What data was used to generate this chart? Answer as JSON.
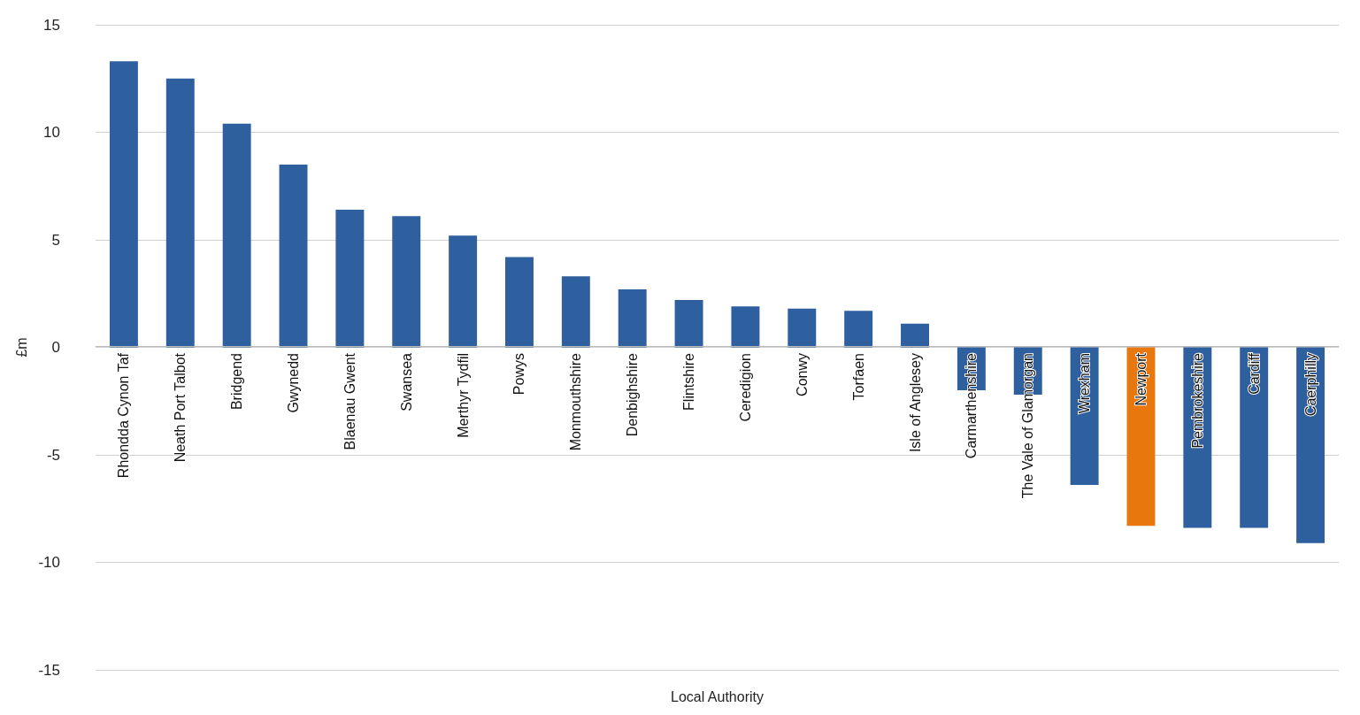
{
  "chart_data": {
    "type": "bar",
    "xlabel": "Local Authority",
    "ylabel": "£m",
    "categories": [
      "Rhondda Cynon Taf",
      "Neath Port Talbot",
      "Bridgend",
      "Gwynedd",
      "Blaenau Gwent",
      "Swansea",
      "Merthyr Tydfil",
      "Powys",
      "Monmouthshire",
      "Denbighshire",
      "Flintshire",
      "Ceredigion",
      "Conwy",
      "Torfaen",
      "Isle of Anglesey",
      "Carmarthenshire",
      "The Vale of Glamorgan",
      "Wrexham",
      "Newport",
      "Pembrokeshire",
      "Cardiff",
      "Caerphilly"
    ],
    "values": [
      13.3,
      12.5,
      10.4,
      8.5,
      6.4,
      6.1,
      5.2,
      4.2,
      3.3,
      2.7,
      2.2,
      1.9,
      1.8,
      1.7,
      1.1,
      -2.0,
      -2.2,
      -6.4,
      -8.3,
      -8.4,
      -8.4,
      -9.1
    ],
    "colors": [
      "#2e5f9e",
      "#2e5f9e",
      "#2e5f9e",
      "#2e5f9e",
      "#2e5f9e",
      "#2e5f9e",
      "#2e5f9e",
      "#2e5f9e",
      "#2e5f9e",
      "#2e5f9e",
      "#2e5f9e",
      "#2e5f9e",
      "#2e5f9e",
      "#2e5f9e",
      "#2e5f9e",
      "#2e5f9e",
      "#2e5f9e",
      "#2e5f9e",
      "#e8770e",
      "#2e5f9e",
      "#2e5f9e",
      "#2e5f9e"
    ],
    "ylim": [
      -15,
      15
    ],
    "yticks": [
      -15,
      -10,
      -5,
      0,
      5,
      10,
      15
    ],
    "grid": "y"
  }
}
